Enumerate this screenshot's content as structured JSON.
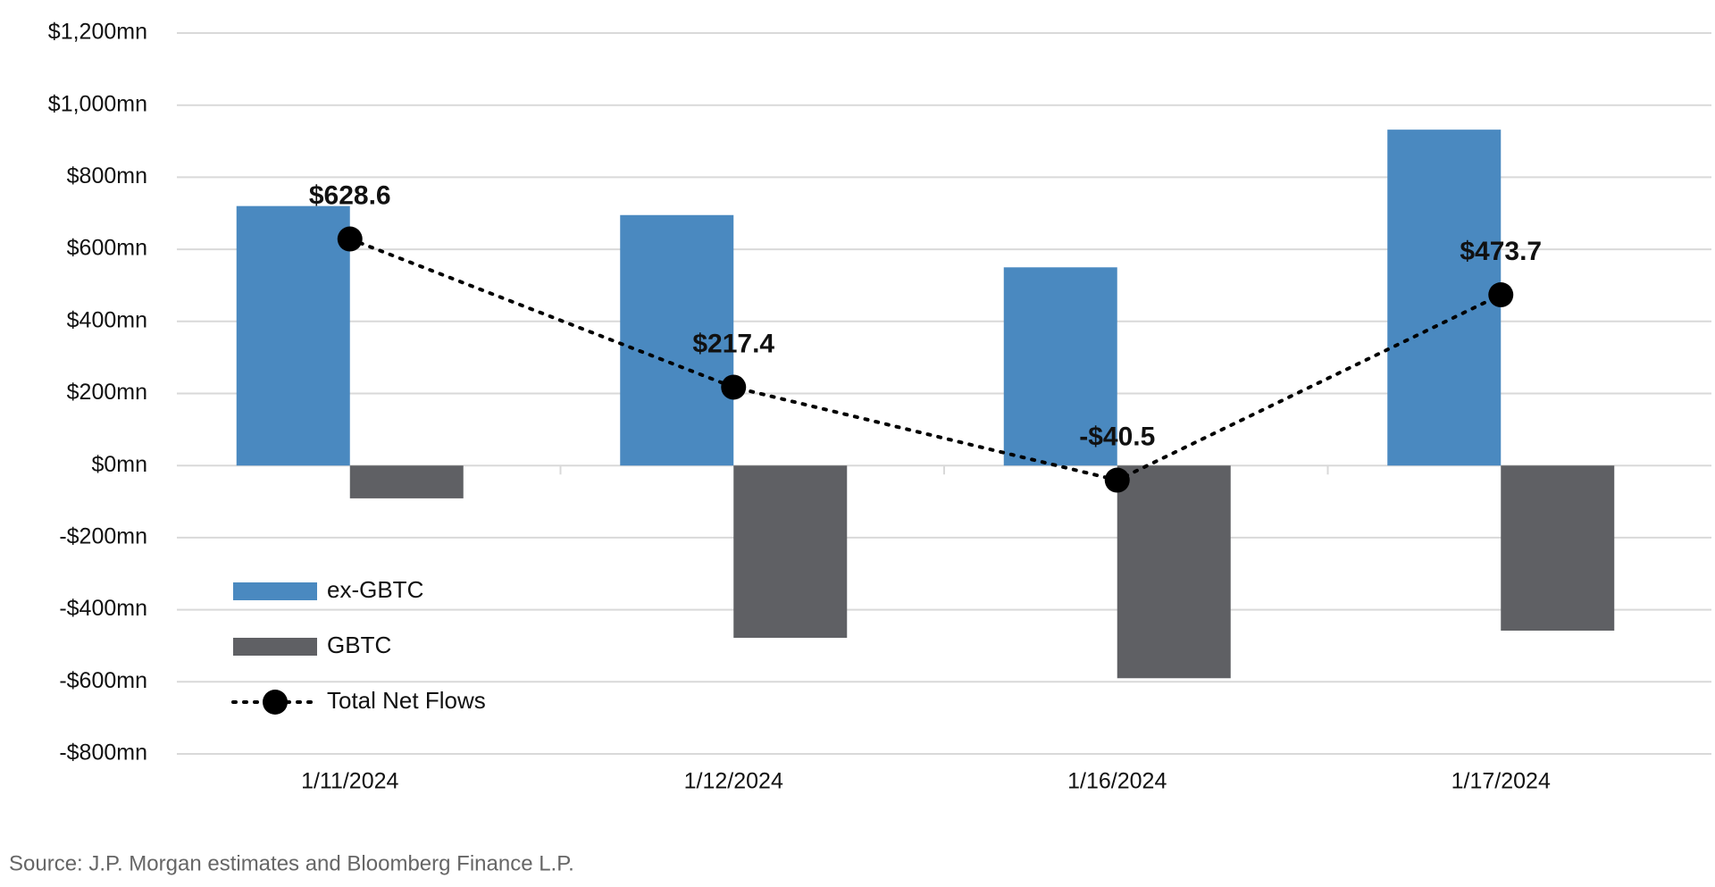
{
  "chart_data": {
    "type": "bar",
    "categories": [
      "1/11/2024",
      "1/12/2024",
      "1/16/2024",
      "1/17/2024"
    ],
    "series": [
      {
        "name": "ex-GBTC",
        "color": "#4a89c0",
        "values": [
          720,
          695,
          550,
          932
        ]
      },
      {
        "name": "GBTC",
        "color": "#5f6064",
        "values": [
          -91,
          -478,
          -590,
          -458
        ]
      },
      {
        "name": "Total Net Flows",
        "type": "line",
        "color": "#000000",
        "values": [
          628.6,
          217.4,
          -40.5,
          473.7
        ],
        "value_labels": [
          "$628.6",
          "$217.4",
          "-$40.5",
          "$473.7"
        ]
      }
    ],
    "ylim": [
      -800,
      1200
    ],
    "yticks": [
      {
        "value": -800,
        "label": "-$800mn"
      },
      {
        "value": -600,
        "label": "-$600mn"
      },
      {
        "value": -400,
        "label": "-$400mn"
      },
      {
        "value": -200,
        "label": "-$200mn"
      },
      {
        "value": 0,
        "label": "$0mn"
      },
      {
        "value": 200,
        "label": "$200mn"
      },
      {
        "value": 400,
        "label": "$400mn"
      },
      {
        "value": 600,
        "label": "$600mn"
      },
      {
        "value": 800,
        "label": "$800mn"
      },
      {
        "value": 1000,
        "label": "$1,000mn"
      },
      {
        "value": 1200,
        "label": "$1,200mn"
      }
    ],
    "grid": true,
    "legend": "lower left",
    "source": "Source: J.P. Morgan estimates and Bloomberg Finance L.P."
  }
}
